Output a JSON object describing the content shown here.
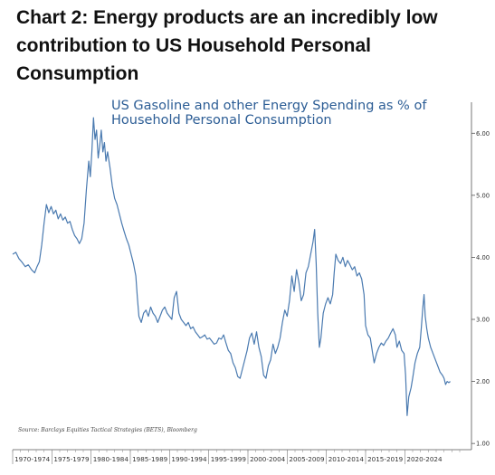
{
  "heading": {
    "text": "Chart 2: Energy products are an incredibly low contribution to US Household Personal Consumption"
  },
  "chart_data": {
    "type": "line",
    "title": "US Gasoline and other Energy Spending as % of Household Personal Consumption",
    "source": "Source: Barclays Equities Tactical Strategies (BETS), Bloomberg",
    "xlabel": "",
    "ylabel": "",
    "ylim": [
      0.9,
      6.5
    ],
    "xlim": [
      1970.0,
      2027.0
    ],
    "y_ticks": [
      "1.00",
      "2.00",
      "3.00",
      "4.00",
      "5.00",
      "6.00"
    ],
    "x_categories": [
      "1970-1974",
      "1975-1979",
      "1980-1984",
      "1985-1989",
      "1990-1994",
      "1995-1999",
      "2000-2004",
      "2005-2009",
      "2010-2014",
      "2015-2019",
      "2020-2024"
    ],
    "y_axis_position": "right",
    "grid": false,
    "line_color": "#4a7ab0",
    "series": [
      {
        "name": "",
        "points": [
          [
            1970.0,
            4.05
          ],
          [
            1970.4,
            4.08
          ],
          [
            1970.8,
            3.98
          ],
          [
            1971.2,
            3.92
          ],
          [
            1971.6,
            3.85
          ],
          [
            1972.0,
            3.88
          ],
          [
            1972.4,
            3.8
          ],
          [
            1972.8,
            3.75
          ],
          [
            1973.1,
            3.85
          ],
          [
            1973.4,
            3.93
          ],
          [
            1973.7,
            4.2
          ],
          [
            1974.0,
            4.55
          ],
          [
            1974.3,
            4.85
          ],
          [
            1974.6,
            4.72
          ],
          [
            1974.9,
            4.82
          ],
          [
            1975.2,
            4.7
          ],
          [
            1975.5,
            4.76
          ],
          [
            1975.8,
            4.62
          ],
          [
            1976.1,
            4.7
          ],
          [
            1976.4,
            4.6
          ],
          [
            1976.7,
            4.65
          ],
          [
            1977.0,
            4.55
          ],
          [
            1977.3,
            4.58
          ],
          [
            1977.6,
            4.45
          ],
          [
            1977.9,
            4.35
          ],
          [
            1978.2,
            4.3
          ],
          [
            1978.5,
            4.22
          ],
          [
            1978.8,
            4.3
          ],
          [
            1979.1,
            4.55
          ],
          [
            1979.4,
            5.1
          ],
          [
            1979.7,
            5.55
          ],
          [
            1979.9,
            5.3
          ],
          [
            1980.1,
            5.7
          ],
          [
            1980.3,
            6.25
          ],
          [
            1980.5,
            5.9
          ],
          [
            1980.7,
            6.05
          ],
          [
            1980.9,
            5.6
          ],
          [
            1981.1,
            5.8
          ],
          [
            1981.3,
            6.05
          ],
          [
            1981.5,
            5.7
          ],
          [
            1981.7,
            5.85
          ],
          [
            1981.9,
            5.55
          ],
          [
            1982.1,
            5.7
          ],
          [
            1982.4,
            5.45
          ],
          [
            1982.7,
            5.15
          ],
          [
            1983.0,
            4.95
          ],
          [
            1983.3,
            4.85
          ],
          [
            1983.6,
            4.7
          ],
          [
            1983.9,
            4.55
          ],
          [
            1984.2,
            4.42
          ],
          [
            1984.5,
            4.3
          ],
          [
            1984.8,
            4.2
          ],
          [
            1985.1,
            4.05
          ],
          [
            1985.4,
            3.9
          ],
          [
            1985.7,
            3.7
          ],
          [
            1985.9,
            3.35
          ],
          [
            1986.1,
            3.05
          ],
          [
            1986.4,
            2.95
          ],
          [
            1986.7,
            3.1
          ],
          [
            1987.0,
            3.15
          ],
          [
            1987.3,
            3.05
          ],
          [
            1987.6,
            3.2
          ],
          [
            1987.9,
            3.1
          ],
          [
            1988.2,
            3.05
          ],
          [
            1988.5,
            2.95
          ],
          [
            1988.8,
            3.05
          ],
          [
            1989.1,
            3.15
          ],
          [
            1989.4,
            3.2
          ],
          [
            1989.7,
            3.1
          ],
          [
            1990.0,
            3.05
          ],
          [
            1990.3,
            3.0
          ],
          [
            1990.6,
            3.35
          ],
          [
            1990.9,
            3.45
          ],
          [
            1991.2,
            3.1
          ],
          [
            1991.5,
            3.0
          ],
          [
            1991.8,
            2.95
          ],
          [
            1992.1,
            2.9
          ],
          [
            1992.4,
            2.95
          ],
          [
            1992.7,
            2.85
          ],
          [
            1993.0,
            2.88
          ],
          [
            1993.3,
            2.8
          ],
          [
            1993.6,
            2.75
          ],
          [
            1993.9,
            2.7
          ],
          [
            1994.2,
            2.72
          ],
          [
            1994.5,
            2.75
          ],
          [
            1994.8,
            2.68
          ],
          [
            1995.1,
            2.7
          ],
          [
            1995.4,
            2.65
          ],
          [
            1995.7,
            2.6
          ],
          [
            1996.0,
            2.62
          ],
          [
            1996.3,
            2.7
          ],
          [
            1996.6,
            2.68
          ],
          [
            1996.9,
            2.75
          ],
          [
            1997.2,
            2.62
          ],
          [
            1997.5,
            2.5
          ],
          [
            1997.8,
            2.45
          ],
          [
            1998.1,
            2.3
          ],
          [
            1998.4,
            2.22
          ],
          [
            1998.7,
            2.08
          ],
          [
            1999.0,
            2.05
          ],
          [
            1999.3,
            2.2
          ],
          [
            1999.6,
            2.35
          ],
          [
            1999.9,
            2.5
          ],
          [
            2000.2,
            2.7
          ],
          [
            2000.5,
            2.78
          ],
          [
            2000.8,
            2.6
          ],
          [
            2001.1,
            2.8
          ],
          [
            2001.4,
            2.55
          ],
          [
            2001.7,
            2.4
          ],
          [
            2002.0,
            2.1
          ],
          [
            2002.3,
            2.05
          ],
          [
            2002.6,
            2.25
          ],
          [
            2002.9,
            2.35
          ],
          [
            2003.2,
            2.6
          ],
          [
            2003.5,
            2.45
          ],
          [
            2003.8,
            2.55
          ],
          [
            2004.1,
            2.7
          ],
          [
            2004.4,
            2.95
          ],
          [
            2004.7,
            3.15
          ],
          [
            2005.0,
            3.05
          ],
          [
            2005.3,
            3.3
          ],
          [
            2005.6,
            3.7
          ],
          [
            2005.9,
            3.45
          ],
          [
            2006.2,
            3.8
          ],
          [
            2006.5,
            3.6
          ],
          [
            2006.8,
            3.3
          ],
          [
            2007.1,
            3.4
          ],
          [
            2007.4,
            3.75
          ],
          [
            2007.7,
            3.85
          ],
          [
            2008.0,
            4.05
          ],
          [
            2008.3,
            4.25
          ],
          [
            2008.5,
            4.45
          ],
          [
            2008.7,
            3.9
          ],
          [
            2008.9,
            3.1
          ],
          [
            2009.1,
            2.55
          ],
          [
            2009.3,
            2.7
          ],
          [
            2009.6,
            3.1
          ],
          [
            2009.9,
            3.25
          ],
          [
            2010.2,
            3.35
          ],
          [
            2010.5,
            3.25
          ],
          [
            2010.8,
            3.4
          ],
          [
            2011.0,
            3.75
          ],
          [
            2011.2,
            4.05
          ],
          [
            2011.5,
            3.95
          ],
          [
            2011.8,
            3.9
          ],
          [
            2012.1,
            4.0
          ],
          [
            2012.4,
            3.85
          ],
          [
            2012.7,
            3.95
          ],
          [
            2013.0,
            3.88
          ],
          [
            2013.3,
            3.8
          ],
          [
            2013.6,
            3.85
          ],
          [
            2013.9,
            3.7
          ],
          [
            2014.2,
            3.75
          ],
          [
            2014.5,
            3.65
          ],
          [
            2014.8,
            3.4
          ],
          [
            2015.0,
            2.9
          ],
          [
            2015.3,
            2.75
          ],
          [
            2015.6,
            2.7
          ],
          [
            2015.9,
            2.45
          ],
          [
            2016.1,
            2.3
          ],
          [
            2016.4,
            2.45
          ],
          [
            2016.7,
            2.55
          ],
          [
            2017.0,
            2.62
          ],
          [
            2017.3,
            2.58
          ],
          [
            2017.6,
            2.65
          ],
          [
            2017.9,
            2.7
          ],
          [
            2018.2,
            2.78
          ],
          [
            2018.5,
            2.85
          ],
          [
            2018.8,
            2.75
          ],
          [
            2019.0,
            2.55
          ],
          [
            2019.3,
            2.65
          ],
          [
            2019.6,
            2.5
          ],
          [
            2019.9,
            2.45
          ],
          [
            2020.1,
            2.1
          ],
          [
            2020.3,
            1.45
          ],
          [
            2020.5,
            1.75
          ],
          [
            2020.8,
            1.9
          ],
          [
            2021.0,
            2.05
          ],
          [
            2021.3,
            2.3
          ],
          [
            2021.6,
            2.45
          ],
          [
            2021.9,
            2.55
          ],
          [
            2022.1,
            2.85
          ],
          [
            2022.3,
            3.2
          ],
          [
            2022.45,
            3.4
          ],
          [
            2022.6,
            3.05
          ],
          [
            2022.8,
            2.85
          ],
          [
            2023.0,
            2.7
          ],
          [
            2023.3,
            2.55
          ],
          [
            2023.6,
            2.45
          ],
          [
            2023.9,
            2.35
          ],
          [
            2024.2,
            2.25
          ],
          [
            2024.5,
            2.15
          ],
          [
            2024.8,
            2.1
          ],
          [
            2025.0,
            2.05
          ],
          [
            2025.2,
            1.95
          ],
          [
            2025.4,
            2.0
          ],
          [
            2025.6,
            1.98
          ],
          [
            2025.8,
            2.0
          ]
        ]
      }
    ]
  }
}
